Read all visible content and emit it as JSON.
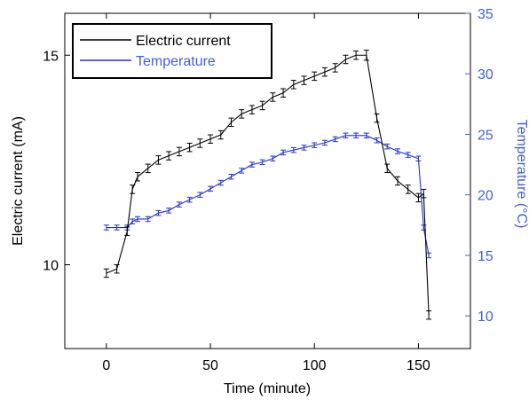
{
  "chart_data": {
    "type": "line",
    "xlabel": "Time (minute)",
    "ylabel_left": "Electric current (mA)",
    "ylabel_right": "Temperature (°C)",
    "xlim": [
      -20,
      175
    ],
    "ylim_left": [
      8.0,
      16.0
    ],
    "ylim_right": [
      7.3,
      35.0
    ],
    "xticks": [
      0,
      50,
      100,
      150
    ],
    "yticks_left": [
      10,
      15
    ],
    "yticks_right": [
      10,
      15,
      20,
      25,
      30,
      35
    ],
    "grid": false,
    "legend_position": "top-left",
    "colors": {
      "current": "#000000",
      "temperature": "#2233cc",
      "right_axis": "#3f5fe0"
    },
    "series": [
      {
        "name": "Electric current",
        "axis": "left",
        "x": [
          0,
          5,
          10,
          12.5,
          15,
          20,
          25,
          30,
          35,
          40,
          45,
          50,
          55,
          60,
          65,
          70,
          75,
          80,
          85,
          90,
          95,
          100,
          105,
          110,
          115,
          120,
          125,
          130,
          135,
          140,
          145,
          150,
          152.5,
          155
        ],
        "y": [
          9.8,
          9.9,
          10.8,
          11.8,
          12.1,
          12.3,
          12.5,
          12.6,
          12.7,
          12.8,
          12.9,
          13.0,
          13.1,
          13.4,
          13.6,
          13.7,
          13.8,
          14.0,
          14.1,
          14.3,
          14.4,
          14.5,
          14.6,
          14.7,
          14.9,
          15.0,
          15.0,
          13.5,
          12.3,
          12.0,
          11.8,
          11.6,
          11.7,
          8.8
        ],
        "err": [
          0.1,
          0.1,
          0.1,
          0.1,
          0.1,
          0.1,
          0.1,
          0.1,
          0.1,
          0.1,
          0.1,
          0.1,
          0.1,
          0.1,
          0.1,
          0.1,
          0.1,
          0.1,
          0.1,
          0.1,
          0.1,
          0.1,
          0.1,
          0.1,
          0.1,
          0.1,
          0.12,
          0.1,
          0.1,
          0.1,
          0.1,
          0.1,
          0.1,
          0.1
        ]
      },
      {
        "name": "Temperature",
        "axis": "right",
        "x": [
          0,
          5,
          10,
          12.5,
          15,
          20,
          25,
          30,
          35,
          40,
          45,
          50,
          55,
          60,
          65,
          70,
          75,
          80,
          85,
          90,
          95,
          100,
          105,
          110,
          115,
          120,
          125,
          130,
          135,
          140,
          145,
          150,
          152.5,
          155
        ],
        "y": [
          17.3,
          17.3,
          17.3,
          17.8,
          18.0,
          18.0,
          18.5,
          18.7,
          19.2,
          19.6,
          20.0,
          20.5,
          21.0,
          21.5,
          22.0,
          22.5,
          22.7,
          23.0,
          23.5,
          23.7,
          23.9,
          24.1,
          24.3,
          24.6,
          24.9,
          24.9,
          24.9,
          24.5,
          24.0,
          23.6,
          23.3,
          23.0,
          17.3,
          15.0
        ],
        "err": [
          0.2,
          0.2,
          0.2,
          0.2,
          0.2,
          0.2,
          0.2,
          0.2,
          0.2,
          0.2,
          0.2,
          0.2,
          0.2,
          0.2,
          0.2,
          0.2,
          0.2,
          0.2,
          0.2,
          0.2,
          0.2,
          0.2,
          0.2,
          0.2,
          0.2,
          0.2,
          0.2,
          0.2,
          0.2,
          0.2,
          0.2,
          0.2,
          0.2,
          0.2
        ]
      }
    ]
  }
}
